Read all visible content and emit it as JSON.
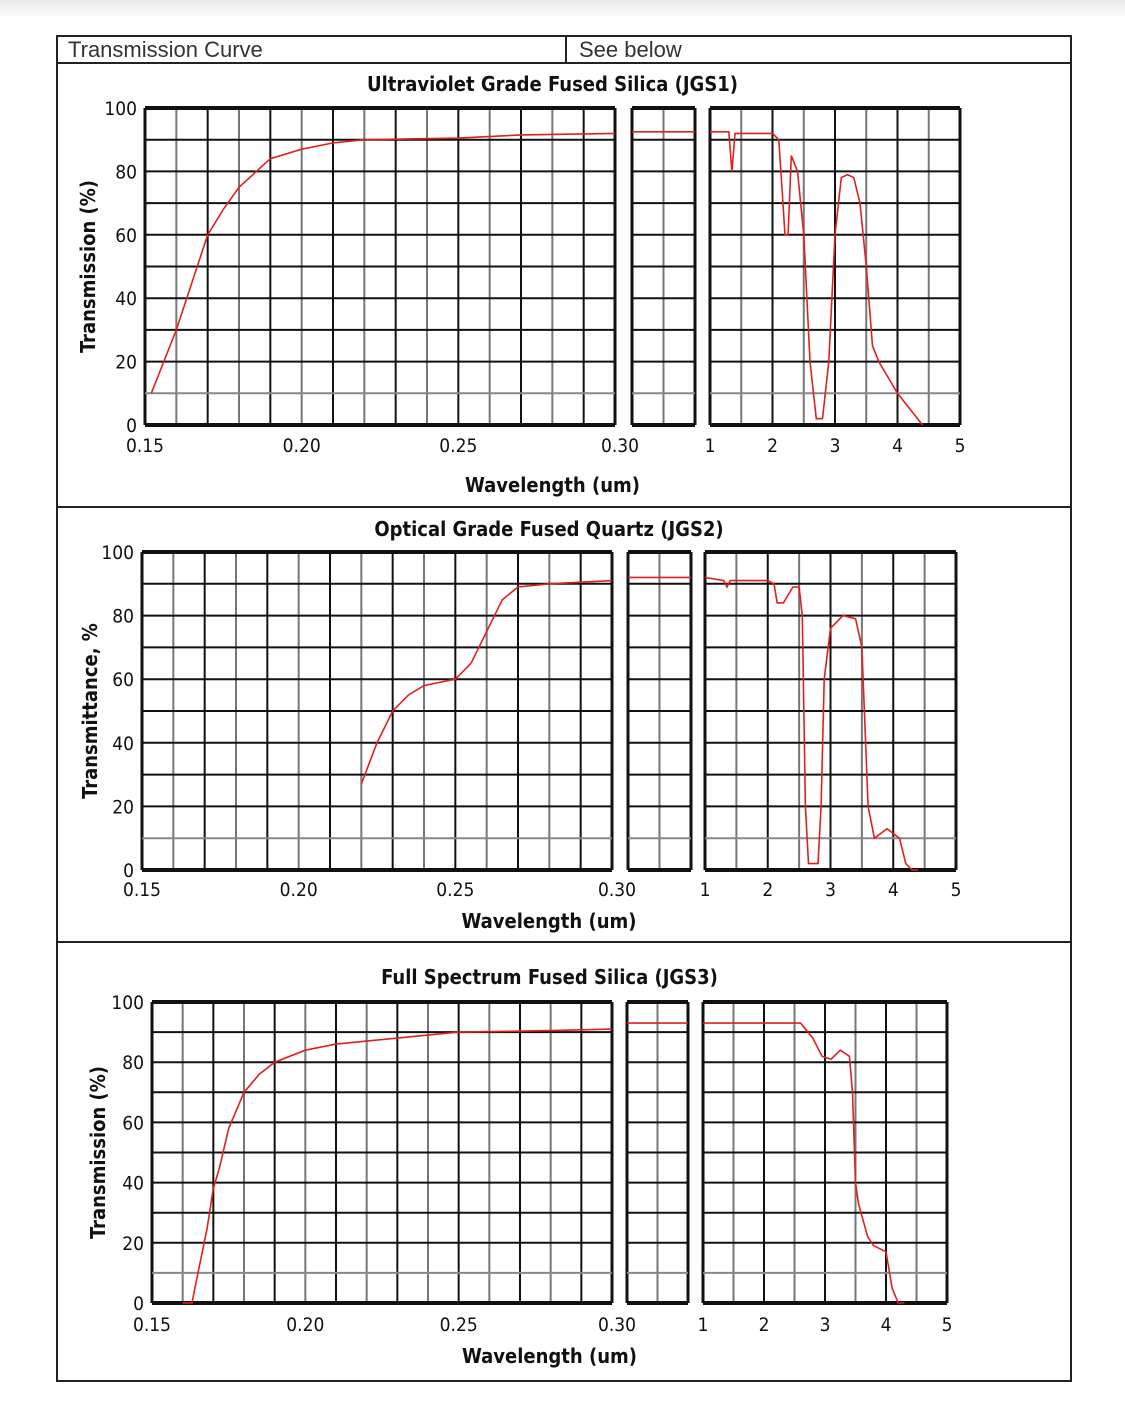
{
  "header": {
    "label": "Transmission Curve",
    "value": "See below"
  },
  "colors": {
    "curve": "#e02020",
    "grid": "#111111"
  },
  "chart_data": [
    {
      "type": "line",
      "title": "Ultraviolet Grade Fused Silica (JGS1)",
      "xlabel": "Wavelength (um)",
      "ylabel": "Transmission (%)",
      "ylim": [
        0,
        100
      ],
      "yticks": [
        "0",
        "20",
        "40",
        "60",
        "80",
        "100"
      ],
      "xticks_uv": [
        "0.15",
        "0.20",
        "0.25",
        "0.30"
      ],
      "xticks_ir": [
        "1",
        "2",
        "3",
        "4",
        "5"
      ],
      "grid": true,
      "series": {
        "uv": [
          [
            0.152,
            10
          ],
          [
            0.16,
            30
          ],
          [
            0.165,
            45
          ],
          [
            0.17,
            60
          ],
          [
            0.175,
            68
          ],
          [
            0.18,
            75
          ],
          [
            0.19,
            84
          ],
          [
            0.2,
            87
          ],
          [
            0.21,
            89
          ],
          [
            0.22,
            90
          ],
          [
            0.25,
            90.5
          ],
          [
            0.27,
            91.5
          ],
          [
            0.3,
            92
          ]
        ],
        "mid": 92.5,
        "ir": [
          [
            1,
            92.5
          ],
          [
            1.3,
            92.5
          ],
          [
            1.35,
            80
          ],
          [
            1.4,
            92
          ],
          [
            2.0,
            92
          ],
          [
            2.1,
            90
          ],
          [
            2.2,
            60
          ],
          [
            2.25,
            60
          ],
          [
            2.3,
            85
          ],
          [
            2.4,
            80
          ],
          [
            2.5,
            60
          ],
          [
            2.6,
            20
          ],
          [
            2.7,
            2
          ],
          [
            2.8,
            2
          ],
          [
            2.9,
            20
          ],
          [
            3.0,
            60
          ],
          [
            3.1,
            78
          ],
          [
            3.2,
            79
          ],
          [
            3.3,
            78
          ],
          [
            3.4,
            70
          ],
          [
            3.5,
            50
          ],
          [
            3.6,
            25
          ],
          [
            3.7,
            20
          ],
          [
            4.0,
            10
          ],
          [
            4.4,
            0
          ]
        ]
      }
    },
    {
      "type": "line",
      "title": "Optical Grade Fused Quartz  (JGS2)",
      "xlabel": "Wavelength (um)",
      "ylabel": "Transmittance, %",
      "ylim": [
        0,
        100
      ],
      "yticks": [
        "0",
        "20",
        "40",
        "60",
        "80",
        "100"
      ],
      "xticks_uv": [
        "0.15",
        "0.20",
        "0.25",
        "0.30"
      ],
      "xticks_ir": [
        "1",
        "2",
        "3",
        "4",
        "5"
      ],
      "grid": true,
      "series": {
        "uv": [
          [
            0.22,
            27
          ],
          [
            0.225,
            40
          ],
          [
            0.23,
            50
          ],
          [
            0.235,
            55
          ],
          [
            0.24,
            58
          ],
          [
            0.25,
            60
          ],
          [
            0.255,
            65
          ],
          [
            0.26,
            75
          ],
          [
            0.265,
            85
          ],
          [
            0.27,
            89
          ],
          [
            0.28,
            90
          ],
          [
            0.3,
            91
          ]
        ],
        "mid": 92,
        "ir": [
          [
            1,
            92
          ],
          [
            1.3,
            91
          ],
          [
            1.35,
            89
          ],
          [
            1.4,
            91
          ],
          [
            2.0,
            91
          ],
          [
            2.1,
            90
          ],
          [
            2.15,
            84
          ],
          [
            2.25,
            84
          ],
          [
            2.4,
            89
          ],
          [
            2.5,
            89
          ],
          [
            2.55,
            80
          ],
          [
            2.6,
            20
          ],
          [
            2.65,
            2
          ],
          [
            2.8,
            2
          ],
          [
            2.85,
            20
          ],
          [
            2.9,
            60
          ],
          [
            3.0,
            76
          ],
          [
            3.2,
            80
          ],
          [
            3.4,
            79
          ],
          [
            3.5,
            70
          ],
          [
            3.6,
            20
          ],
          [
            3.7,
            10
          ],
          [
            3.9,
            13
          ],
          [
            4.1,
            10
          ],
          [
            4.2,
            2
          ],
          [
            4.3,
            0
          ],
          [
            4.4,
            0
          ]
        ]
      }
    },
    {
      "type": "line",
      "title": "Full Spectrum Fused Silica (JGS3)",
      "xlabel": "Wavelength (um)",
      "ylabel": "Transmission (%)",
      "ylim": [
        0,
        100
      ],
      "yticks": [
        "0",
        "20",
        "40",
        "60",
        "80",
        "100"
      ],
      "xticks_uv": [
        "0.15",
        "0.20",
        "0.25",
        "0.30"
      ],
      "xticks_ir": [
        "1",
        "2",
        "3",
        "4",
        "5"
      ],
      "grid": true,
      "series": {
        "uv": [
          [
            0.16,
            0
          ],
          [
            0.163,
            0
          ],
          [
            0.165,
            10
          ],
          [
            0.168,
            25
          ],
          [
            0.17,
            38
          ],
          [
            0.172,
            45
          ],
          [
            0.175,
            58
          ],
          [
            0.18,
            70
          ],
          [
            0.185,
            76
          ],
          [
            0.19,
            80
          ],
          [
            0.2,
            84
          ],
          [
            0.21,
            86
          ],
          [
            0.22,
            87
          ],
          [
            0.23,
            88
          ],
          [
            0.25,
            90
          ],
          [
            0.28,
            90.5
          ],
          [
            0.3,
            91
          ]
        ],
        "mid": 93,
        "ir": [
          [
            1,
            93
          ],
          [
            2.6,
            93
          ],
          [
            2.8,
            88
          ],
          [
            2.95,
            82
          ],
          [
            3.1,
            81
          ],
          [
            3.25,
            84
          ],
          [
            3.4,
            82
          ],
          [
            3.45,
            70
          ],
          [
            3.5,
            40
          ],
          [
            3.55,
            33
          ],
          [
            3.7,
            22
          ],
          [
            3.8,
            19
          ],
          [
            4.0,
            17
          ],
          [
            4.1,
            5
          ],
          [
            4.2,
            0
          ],
          [
            4.3,
            0
          ]
        ]
      }
    }
  ]
}
